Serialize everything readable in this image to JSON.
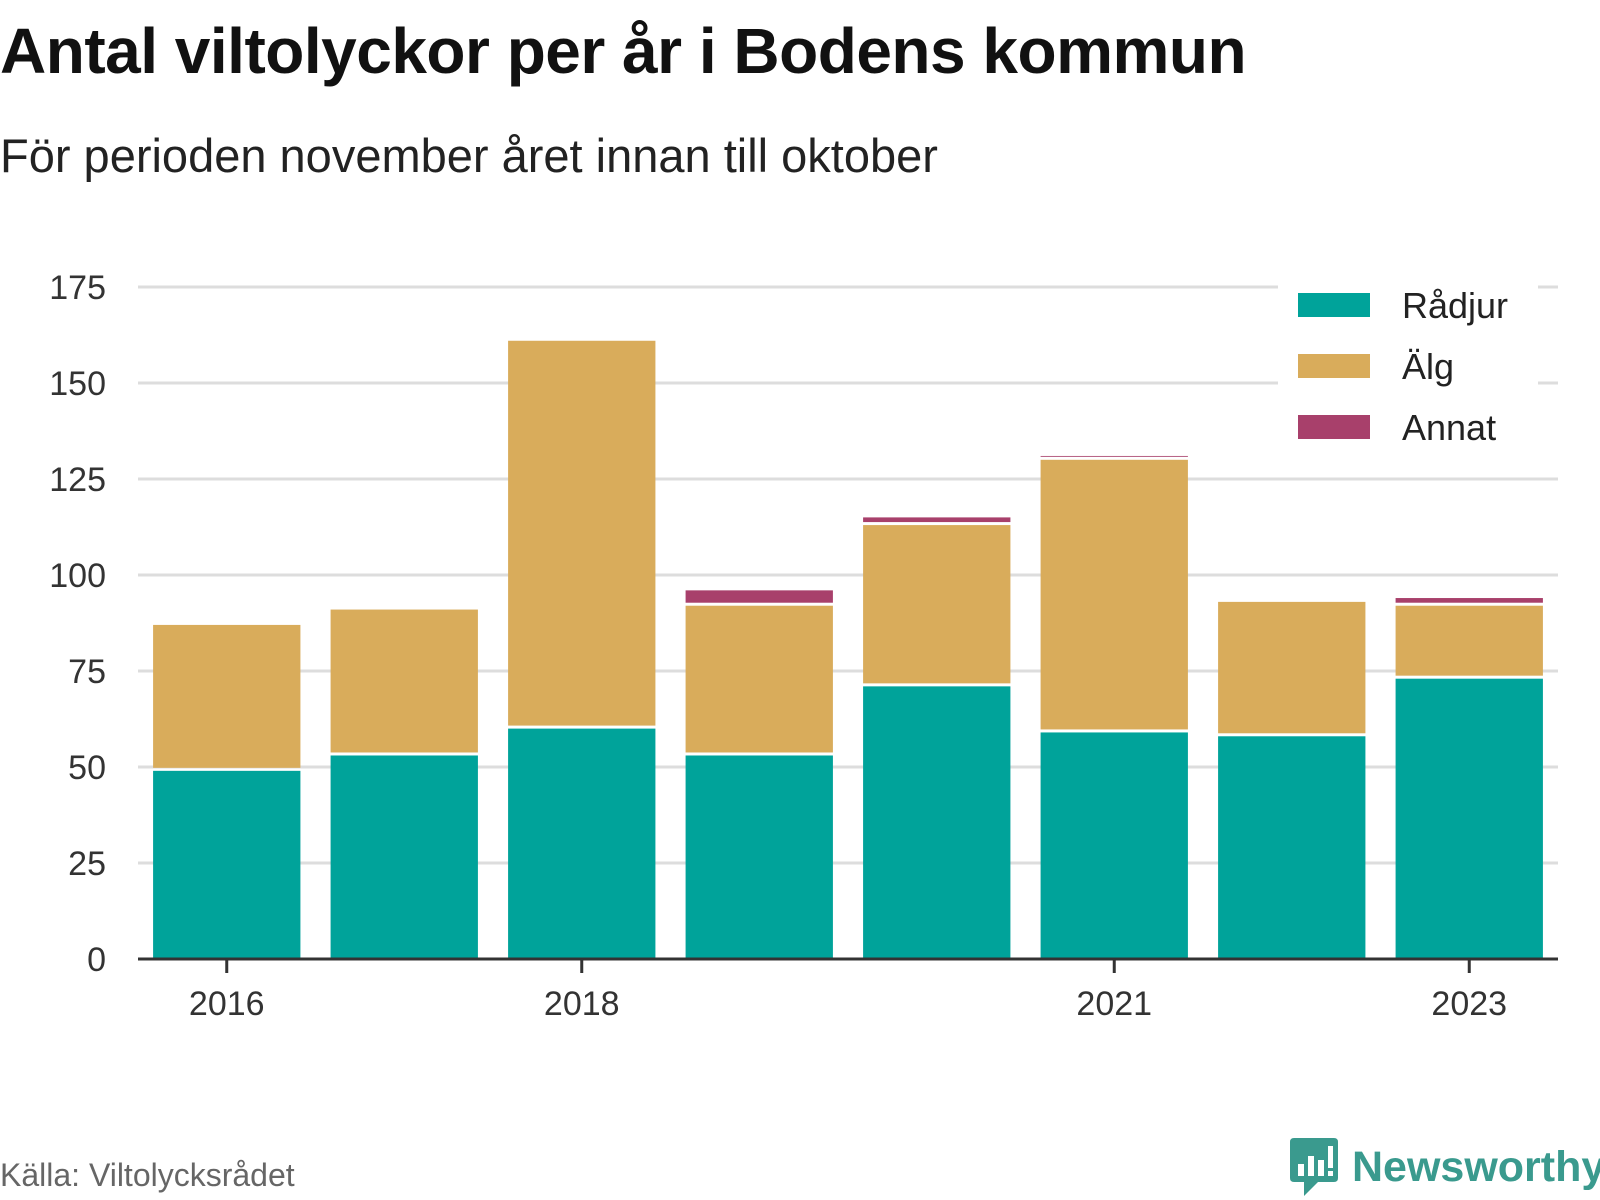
{
  "title": "Antal viltolyckor per år i Bodens kommun",
  "subtitle": "För perioden november året innan till oktober",
  "source": "Källa: Viltolycksrådet",
  "brand": {
    "name": "Newsworthy",
    "icon": "newsworthy-logo-icon",
    "color": "#3a9a8e"
  },
  "chart_data": {
    "type": "bar",
    "stacked": true,
    "categories": [
      "2016",
      "2017",
      "2018",
      "2019",
      "2020",
      "2021",
      "2022",
      "2023"
    ],
    "x_tick_labels": [
      "2016",
      "2018",
      "2021",
      "2023"
    ],
    "y_ticks": [
      0,
      25,
      50,
      75,
      100,
      125,
      150,
      175
    ],
    "ylim": [
      0,
      175
    ],
    "grid": true,
    "legend_position": "top-right",
    "series": [
      {
        "name": "Rådjur",
        "color": "#00a39a",
        "values": [
          49,
          53,
          60,
          53,
          71,
          59,
          58,
          73
        ]
      },
      {
        "name": "Älg",
        "color": "#d9ac5b",
        "values": [
          38,
          38,
          101,
          39,
          42,
          71,
          35,
          19
        ]
      },
      {
        "name": "Annat",
        "color": "#a8406b",
        "values": [
          0,
          0,
          0,
          4,
          2,
          1,
          0,
          2
        ]
      }
    ]
  }
}
